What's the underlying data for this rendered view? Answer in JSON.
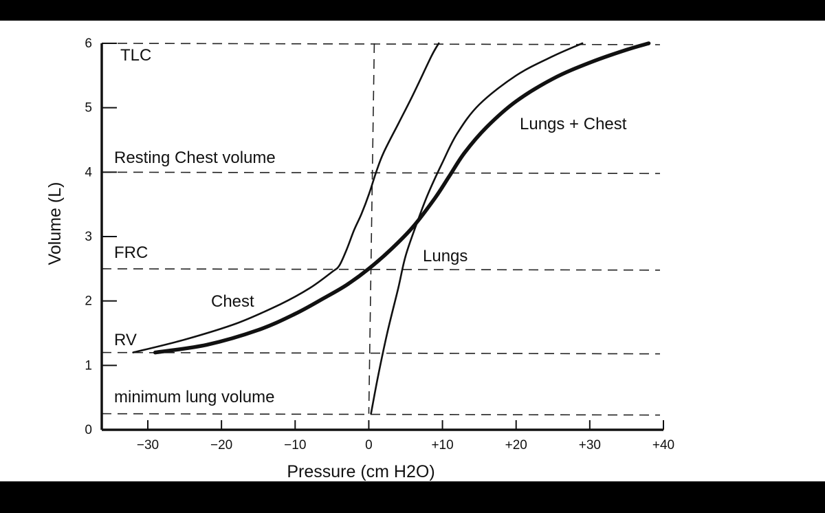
{
  "chart_data": {
    "type": "line",
    "title": "",
    "xlabel": "Pressure (cm H2O)",
    "ylabel": "Volume (L)",
    "xlim": [
      -37,
      40
    ],
    "ylim": [
      0,
      6
    ],
    "x_ticks": [
      -30,
      -20,
      -10,
      0,
      10,
      20,
      30,
      40
    ],
    "x_tick_labels": [
      "−30",
      "−20",
      "−10",
      "0",
      "+10",
      "+20",
      "+30",
      "+40"
    ],
    "y_ticks": [
      0,
      1,
      2,
      3,
      4,
      5,
      6
    ],
    "y_tick_labels": [
      "0",
      "1",
      "2",
      "3",
      "4",
      "5",
      "6"
    ],
    "grid": false,
    "legend": "none",
    "series": [
      {
        "name": "Chest",
        "x": [
          -32,
          -25,
          -18,
          -12,
          -8,
          -5,
          -4,
          -3,
          -2,
          -1,
          0,
          1,
          2,
          4,
          6,
          8.5,
          9.5
        ],
        "y": [
          1.2,
          1.4,
          1.65,
          1.95,
          2.2,
          2.45,
          2.55,
          2.8,
          3.1,
          3.35,
          3.65,
          4.0,
          4.3,
          4.75,
          5.2,
          5.8,
          6.0
        ]
      },
      {
        "name": "Lungs",
        "x": [
          0.3,
          1.2,
          2.5,
          4,
          5,
          6.5,
          8,
          10,
          12,
          15,
          20,
          25,
          29
        ],
        "y": [
          0.25,
          0.8,
          1.5,
          2.2,
          2.7,
          3.2,
          3.65,
          4.15,
          4.6,
          5.05,
          5.5,
          5.8,
          6.0
        ]
      },
      {
        "name": "Lungs + Chest",
        "x": [
          -29,
          -22,
          -15,
          -10,
          -6,
          -3,
          0,
          3,
          6,
          9,
          11,
          13,
          16,
          20,
          25,
          30,
          35,
          38
        ],
        "y": [
          1.2,
          1.32,
          1.55,
          1.8,
          2.05,
          2.25,
          2.5,
          2.8,
          3.15,
          3.6,
          3.95,
          4.3,
          4.7,
          5.1,
          5.45,
          5.7,
          5.9,
          6.0
        ]
      }
    ],
    "reference_lines": [
      {
        "label": "TLC",
        "y": 6.0
      },
      {
        "label": "Resting Chest volume",
        "y": 4.0
      },
      {
        "label": "FRC",
        "y": 2.5
      },
      {
        "label": "RV",
        "y": 1.2
      },
      {
        "label": "minimum lung volume",
        "y": 0.25
      }
    ],
    "zero_pressure_line_x": 0,
    "annotations": [
      "TLC",
      "Resting Chest volume",
      "FRC",
      "RV",
      "minimum lung volume",
      "Chest",
      "Lungs",
      "Lungs + Chest"
    ]
  }
}
